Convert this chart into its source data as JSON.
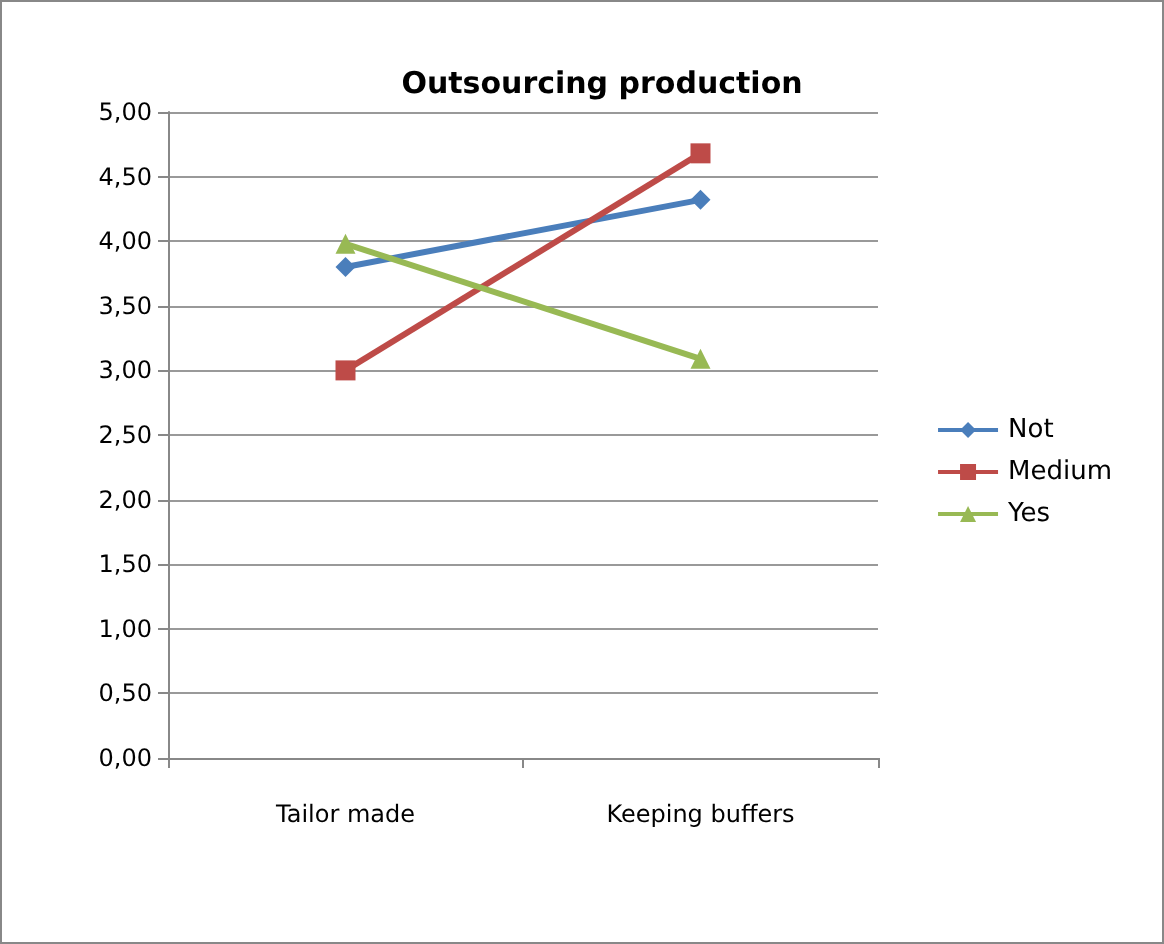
{
  "chart_data": {
    "type": "line",
    "title": "Outsourcing production",
    "categories": [
      "Tailor made",
      "Keeping buffers"
    ],
    "series": [
      {
        "name": "Not",
        "color": "#4a7ebb",
        "marker": "diamond",
        "values": [
          3.8,
          4.32
        ]
      },
      {
        "name": "Medium",
        "color": "#be4b48",
        "marker": "square",
        "values": [
          3.0,
          4.68
        ]
      },
      {
        "name": "Yes",
        "color": "#98b954",
        "marker": "triangle",
        "values": [
          3.98,
          3.09
        ]
      }
    ],
    "ylim": [
      0,
      5
    ],
    "yticks": [
      {
        "value": 0,
        "label": "0,00"
      },
      {
        "value": 0.5,
        "label": "0,50"
      },
      {
        "value": 1,
        "label": "1,00"
      },
      {
        "value": 1.5,
        "label": "1,50"
      },
      {
        "value": 2,
        "label": "2,00"
      },
      {
        "value": 2.5,
        "label": "2,50"
      },
      {
        "value": 3,
        "label": "3,00"
      },
      {
        "value": 3.5,
        "label": "3,50"
      },
      {
        "value": 4,
        "label": "4,00"
      },
      {
        "value": 4.5,
        "label": "4,50"
      },
      {
        "value": 5,
        "label": "5,00"
      }
    ],
    "grid": "y",
    "legend": "right",
    "line_style": "solid"
  }
}
